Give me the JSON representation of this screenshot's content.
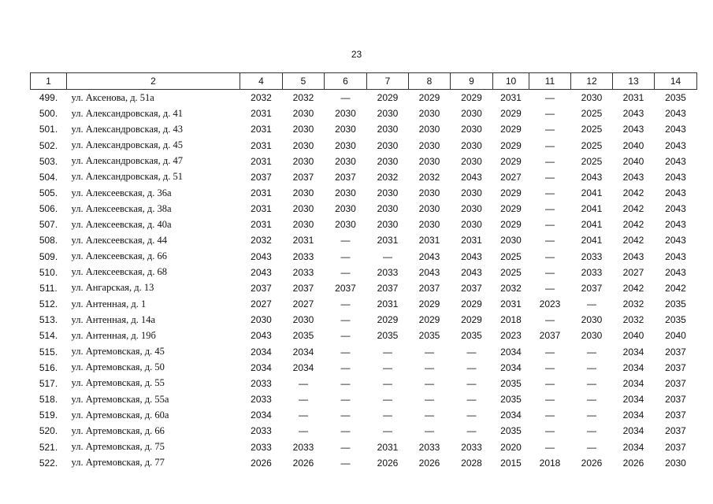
{
  "header": {
    "page": "23"
  },
  "table": {
    "columns": [
      "1",
      "2",
      "4",
      "5",
      "6",
      "7",
      "8",
      "9",
      "10",
      "11",
      "12",
      "13",
      "14"
    ],
    "rows": [
      [
        "499.",
        "ул. Аксенова, д. 51а",
        "2032",
        "2032",
        "—",
        "2029",
        "2029",
        "2029",
        "2031",
        "—",
        "2030",
        "2031",
        "2035"
      ],
      [
        "500.",
        "ул. Александровская, д. 41",
        "2031",
        "2030",
        "2030",
        "2030",
        "2030",
        "2030",
        "2029",
        "—",
        "2025",
        "2043",
        "2043"
      ],
      [
        "501.",
        "ул. Александровская, д. 43",
        "2031",
        "2030",
        "2030",
        "2030",
        "2030",
        "2030",
        "2029",
        "—",
        "2025",
        "2043",
        "2043"
      ],
      [
        "502.",
        "ул. Александровская, д. 45",
        "2031",
        "2030",
        "2030",
        "2030",
        "2030",
        "2030",
        "2029",
        "—",
        "2025",
        "2040",
        "2043"
      ],
      [
        "503.",
        "ул. Александровская, д. 47",
        "2031",
        "2030",
        "2030",
        "2030",
        "2030",
        "2030",
        "2029",
        "—",
        "2025",
        "2040",
        "2043"
      ],
      [
        "504.",
        "ул. Александровская, д. 51",
        "2037",
        "2037",
        "2037",
        "2032",
        "2032",
        "2043",
        "2027",
        "—",
        "2043",
        "2043",
        "2043"
      ],
      [
        "505.",
        "ул. Алексеевская, д. 36а",
        "2031",
        "2030",
        "2030",
        "2030",
        "2030",
        "2030",
        "2029",
        "—",
        "2041",
        "2042",
        "2043"
      ],
      [
        "506.",
        "ул. Алексеевская, д. 38а",
        "2031",
        "2030",
        "2030",
        "2030",
        "2030",
        "2030",
        "2029",
        "—",
        "2041",
        "2042",
        "2043"
      ],
      [
        "507.",
        "ул. Алексеевская, д. 40а",
        "2031",
        "2030",
        "2030",
        "2030",
        "2030",
        "2030",
        "2029",
        "—",
        "2041",
        "2042",
        "2043"
      ],
      [
        "508.",
        "ул. Алексеевская, д. 44",
        "2032",
        "2031",
        "—",
        "2031",
        "2031",
        "2031",
        "2030",
        "—",
        "2041",
        "2042",
        "2043"
      ],
      [
        "509.",
        "ул. Алексеевская, д. 66",
        "2043",
        "2033",
        "—",
        "—",
        "2043",
        "2043",
        "2025",
        "—",
        "2033",
        "2043",
        "2043"
      ],
      [
        "510.",
        "ул. Алексеевская, д. 68",
        "2043",
        "2033",
        "—",
        "2033",
        "2043",
        "2043",
        "2025",
        "—",
        "2033",
        "2027",
        "2043"
      ],
      [
        "511.",
        "ул. Ангарская, д. 13",
        "2037",
        "2037",
        "2037",
        "2037",
        "2037",
        "2037",
        "2032",
        "—",
        "2037",
        "2042",
        "2042"
      ],
      [
        "512.",
        "ул. Антенная, д. 1",
        "2027",
        "2027",
        "—",
        "2031",
        "2029",
        "2029",
        "2031",
        "2023",
        "—",
        "2032",
        "2035"
      ],
      [
        "513.",
        "ул. Антенная, д. 14а",
        "2030",
        "2030",
        "—",
        "2029",
        "2029",
        "2029",
        "2018",
        "—",
        "2030",
        "2032",
        "2035"
      ],
      [
        "514.",
        "ул. Антенная, д. 19б",
        "2043",
        "2035",
        "—",
        "2035",
        "2035",
        "2035",
        "2023",
        "2037",
        "2030",
        "2040",
        "2040"
      ],
      [
        "515.",
        "ул. Артемовская, д. 45",
        "2034",
        "2034",
        "—",
        "—",
        "—",
        "—",
        "2034",
        "—",
        "—",
        "2034",
        "2037"
      ],
      [
        "516.",
        "ул. Артемовская, д. 50",
        "2034",
        "2034",
        "—",
        "—",
        "—",
        "—",
        "2034",
        "—",
        "—",
        "2034",
        "2037"
      ],
      [
        "517.",
        "ул. Артемовская, д. 55",
        "2033",
        "—",
        "—",
        "—",
        "—",
        "—",
        "2035",
        "—",
        "—",
        "2034",
        "2037"
      ],
      [
        "518.",
        "ул. Артемовская, д. 55а",
        "2033",
        "—",
        "—",
        "—",
        "—",
        "—",
        "2035",
        "—",
        "—",
        "2034",
        "2037"
      ],
      [
        "519.",
        "ул. Артемовская, д. 60а",
        "2034",
        "—",
        "—",
        "—",
        "—",
        "—",
        "2034",
        "—",
        "—",
        "2034",
        "2037"
      ],
      [
        "520.",
        "ул. Артемовская, д. 66",
        "2033",
        "—",
        "—",
        "—",
        "—",
        "—",
        "2035",
        "—",
        "—",
        "2034",
        "2037"
      ],
      [
        "521.",
        "ул. Артемовская, д. 75",
        "2033",
        "2033",
        "—",
        "2031",
        "2033",
        "2033",
        "2020",
        "—",
        "—",
        "2034",
        "2037"
      ],
      [
        "522.",
        "ул. Артемовская, д. 77",
        "2026",
        "2026",
        "—",
        "2026",
        "2026",
        "2028",
        "2015",
        "2018",
        "2026",
        "2026",
        "2030"
      ]
    ]
  }
}
